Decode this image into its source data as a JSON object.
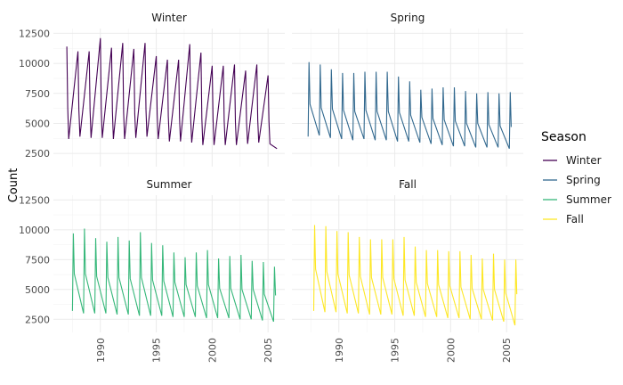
{
  "chart_data": {
    "type": "line",
    "facet": "wrap",
    "ylabel": "Count",
    "xlabel": "",
    "xlim": [
      1985.8,
      2006.5
    ],
    "ylim": [
      1400,
      12900
    ],
    "x_ticks": [
      1990,
      1995,
      2000,
      2005
    ],
    "x_tick_labels": [
      "1990",
      "1995",
      "2000",
      "2005"
    ],
    "y_ticks": [
      2500,
      5000,
      7500,
      10000,
      12500
    ],
    "y_tick_labels": [
      "2500",
      "5000",
      "7500",
      "10000",
      "12500"
    ],
    "grid": true,
    "legend": {
      "title": "Season",
      "position": "right"
    },
    "series": [
      {
        "name": "Winter",
        "color": "#440154",
        "x": [
          1987.0,
          1987.08,
          1987.17,
          1988.0,
          1988.08,
          1988.17,
          1989.0,
          1989.08,
          1989.17,
          1990.0,
          1990.08,
          1990.17,
          1991.0,
          1991.08,
          1991.17,
          1992.0,
          1992.08,
          1992.17,
          1993.0,
          1993.08,
          1993.17,
          1994.0,
          1994.08,
          1994.17,
          1995.0,
          1995.08,
          1995.17,
          1996.0,
          1996.08,
          1996.17,
          1997.0,
          1997.08,
          1997.17,
          1998.0,
          1998.08,
          1998.17,
          1999.0,
          1999.08,
          1999.17,
          2000.0,
          2000.08,
          2000.17,
          2001.0,
          2001.08,
          2001.17,
          2002.0,
          2002.08,
          2002.17,
          2003.0,
          2003.08,
          2003.17,
          2004.0,
          2004.08,
          2004.17,
          2005.0,
          2005.08,
          2005.17,
          2005.8
        ],
        "values": [
          11400,
          6300,
          3700,
          11000,
          6200,
          3900,
          11000,
          6100,
          3800,
          12100,
          6200,
          3800,
          11300,
          6000,
          3700,
          11700,
          5900,
          3700,
          11200,
          5800,
          3800,
          11700,
          6200,
          3900,
          10600,
          5800,
          3700,
          10300,
          5600,
          3500,
          10300,
          5500,
          3500,
          11600,
          5500,
          3400,
          10900,
          5400,
          3200,
          9800,
          5300,
          3200,
          9800,
          5200,
          3200,
          9900,
          5100,
          3200,
          9400,
          5100,
          3300,
          9900,
          5300,
          3400,
          9000,
          5200,
          3300,
          2900
        ]
      },
      {
        "name": "Spring",
        "color": "#31688e",
        "x": [
          1987.25,
          1987.33,
          1987.42,
          1988.25,
          1988.33,
          1988.42,
          1989.25,
          1989.33,
          1989.42,
          1990.25,
          1990.33,
          1990.42,
          1991.25,
          1991.33,
          1991.42,
          1992.25,
          1992.33,
          1992.42,
          1993.25,
          1993.33,
          1993.42,
          1994.25,
          1994.33,
          1994.42,
          1995.25,
          1995.33,
          1995.42,
          1996.25,
          1996.33,
          1996.42,
          1997.25,
          1997.33,
          1997.42,
          1998.25,
          1998.33,
          1998.42,
          1999.25,
          1999.33,
          1999.42,
          2000.25,
          2000.33,
          2000.42,
          2001.25,
          2001.33,
          2001.42,
          2002.25,
          2002.33,
          2002.42,
          2003.25,
          2003.33,
          2003.42,
          2004.25,
          2004.33,
          2004.42,
          2005.25,
          2005.33,
          2005.42
        ],
        "values": [
          3900,
          10100,
          6600,
          4000,
          9900,
          6300,
          3800,
          9500,
          6200,
          3700,
          9200,
          6100,
          3600,
          9200,
          6000,
          3700,
          9300,
          6100,
          3600,
          9300,
          6000,
          3600,
          9300,
          6000,
          3500,
          8900,
          5900,
          3500,
          8500,
          5700,
          3400,
          7800,
          5500,
          3300,
          7900,
          5400,
          3200,
          8000,
          5300,
          3100,
          8000,
          5200,
          3100,
          7700,
          5000,
          3000,
          7500,
          5000,
          3000,
          7600,
          4900,
          3000,
          7500,
          4800,
          2900,
          7600,
          4700
        ]
      },
      {
        "name": "Summer",
        "color": "#35b779",
        "x": [
          1987.5,
          1987.58,
          1987.67,
          1988.5,
          1988.58,
          1988.67,
          1989.5,
          1989.58,
          1989.67,
          1990.5,
          1990.58,
          1990.67,
          1991.5,
          1991.58,
          1991.67,
          1992.5,
          1992.58,
          1992.67,
          1993.5,
          1993.58,
          1993.67,
          1994.5,
          1994.58,
          1994.67,
          1995.5,
          1995.58,
          1995.67,
          1996.5,
          1996.58,
          1996.67,
          1997.5,
          1997.58,
          1997.67,
          1998.5,
          1998.58,
          1998.67,
          1999.5,
          1999.58,
          1999.67,
          2000.5,
          2000.58,
          2000.67,
          2001.5,
          2001.58,
          2001.67,
          2002.5,
          2002.58,
          2002.67,
          2003.5,
          2003.58,
          2003.67,
          2004.5,
          2004.58,
          2004.67,
          2005.5,
          2005.58,
          2005.67
        ],
        "values": [
          3200,
          9700,
          6300,
          3000,
          10100,
          6300,
          3000,
          9300,
          6100,
          3000,
          9000,
          6000,
          2900,
          9400,
          6000,
          2900,
          9100,
          5900,
          2800,
          9800,
          6000,
          2800,
          8900,
          5800,
          2800,
          8700,
          5700,
          2700,
          8100,
          5600,
          2700,
          7700,
          5400,
          2700,
          8100,
          5300,
          2600,
          8300,
          5400,
          2600,
          7600,
          5100,
          2600,
          7800,
          5100,
          2500,
          7900,
          5000,
          2500,
          7400,
          5000,
          2400,
          7300,
          4600,
          2300,
          6900,
          4500
        ]
      },
      {
        "name": "Fall",
        "color": "#fde725",
        "x": [
          1987.75,
          1987.83,
          1987.92,
          1988.75,
          1988.83,
          1988.92,
          1989.75,
          1989.83,
          1989.92,
          1990.75,
          1990.83,
          1990.92,
          1991.75,
          1991.83,
          1991.92,
          1992.75,
          1992.83,
          1992.92,
          1993.75,
          1993.83,
          1993.92,
          1994.75,
          1994.83,
          1994.92,
          1995.75,
          1995.83,
          1995.92,
          1996.75,
          1996.83,
          1996.92,
          1997.75,
          1997.83,
          1997.92,
          1998.75,
          1998.83,
          1998.92,
          1999.75,
          1999.83,
          1999.92,
          2000.75,
          2000.83,
          2000.92,
          2001.75,
          2001.83,
          2001.92,
          2002.75,
          2002.83,
          2002.92,
          2003.75,
          2003.83,
          2003.92,
          2004.75,
          2004.83,
          2004.92,
          2005.75,
          2005.83,
          2005.92
        ],
        "values": [
          3200,
          10400,
          6700,
          3100,
          10300,
          6500,
          3100,
          9900,
          6300,
          3000,
          9800,
          6200,
          3000,
          9400,
          6100,
          2900,
          9200,
          6000,
          2900,
          9200,
          6000,
          2900,
          9200,
          5900,
          2800,
          9400,
          5800,
          2800,
          8600,
          5600,
          2700,
          8300,
          5500,
          2700,
          8300,
          5400,
          2600,
          8200,
          5300,
          2600,
          8200,
          5200,
          2500,
          7900,
          5100,
          2500,
          7600,
          5000,
          2400,
          8000,
          5000,
          2300,
          7500,
          4700,
          2000,
          7500,
          4600
        ]
      }
    ]
  }
}
